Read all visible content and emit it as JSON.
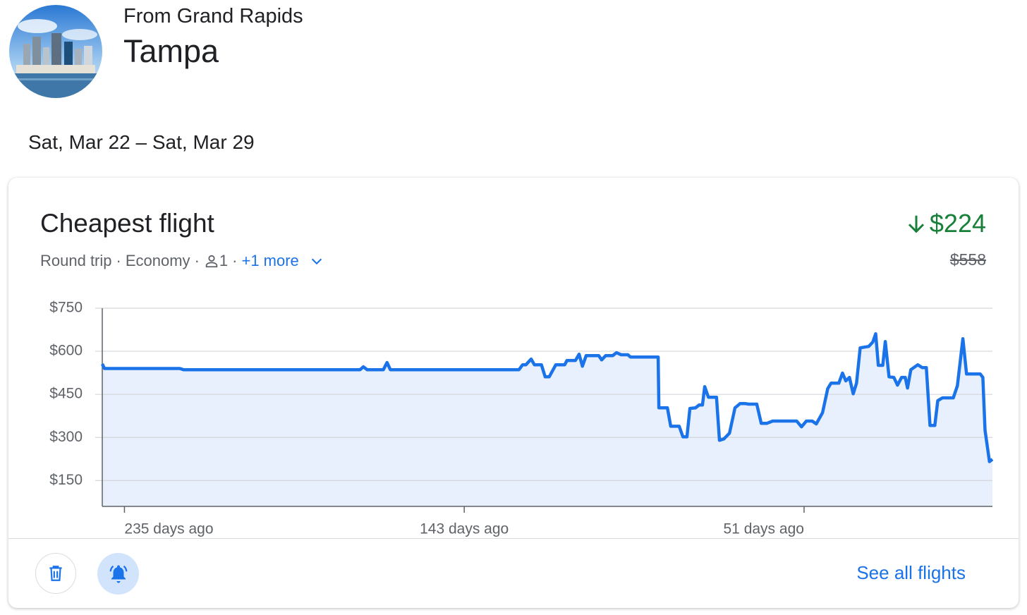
{
  "origin": "From Grand Rapids",
  "destination": "Tampa",
  "dates": "Sat, Mar 22 – Sat, Mar 29",
  "card": {
    "title": "Cheapest flight",
    "trip": "Round trip",
    "cabin": "Economy",
    "separator": "·",
    "passengers": "1",
    "more": "+1 more",
    "price": "$224",
    "old_price": "$558",
    "action": "See all flights"
  },
  "chart_data": {
    "type": "line",
    "color": "#1a73e8",
    "x": [
      241,
      240.4,
      220,
      219,
      171.2,
      170.3,
      169.3,
      164.9,
      163.9,
      163,
      128.2,
      127.2,
      126.3,
      124.9,
      124,
      122.1,
      121.1,
      120,
      118.2,
      115.8,
      115.2,
      112.9,
      111.9,
      111,
      110,
      106.6,
      105.8,
      104.7,
      102.8,
      101.8,
      100.5,
      98.7,
      98,
      90.5,
      90.3,
      88,
      87.1,
      84.8,
      83.8,
      82.7,
      81.9,
      80.4,
      79.4,
      78.5,
      77.9,
      76.9,
      74.7,
      73.9,
      72.7,
      71.2,
      69.7,
      68.3,
      67,
      66,
      63.8,
      62.6,
      61.1,
      59.5,
      53,
      51.7,
      50.4,
      48.8,
      47.7,
      46,
      44.6,
      43.7,
      41.6,
      40.6,
      39.7,
      38.7,
      37.7,
      36.8,
      35.8,
      33.5,
      32.4,
      31.6,
      30.9,
      29.7,
      29,
      28,
      26.7,
      25.7,
      24.6,
      23.6,
      23,
      22.1,
      20.2,
      19,
      17.9,
      16.9,
      15.6,
      14.8,
      13.5,
      10.6,
      9.5,
      8,
      7,
      3.3,
      2.6,
      2,
      0.8,
      0
    ],
    "values": [
      556,
      540,
      540,
      536,
      536,
      546,
      536,
      536,
      561,
      536,
      536,
      553,
      553,
      573,
      553,
      553,
      511,
      511,
      553,
      553,
      568,
      568,
      590,
      548,
      585,
      585,
      570,
      585,
      585,
      595,
      588,
      588,
      580,
      580,
      403,
      403,
      339,
      339,
      302,
      302,
      401,
      403,
      413,
      413,
      477,
      440,
      440,
      290,
      295,
      315,
      403,
      418,
      418,
      416,
      416,
      349,
      349,
      357,
      357,
      337,
      357,
      357,
      347,
      386,
      470,
      489,
      489,
      524,
      497,
      509,
      452,
      489,
      612,
      617,
      632,
      661,
      551,
      551,
      634,
      511,
      509,
      482,
      509,
      509,
      472,
      536,
      553,
      543,
      543,
      342,
      342,
      428,
      438,
      438,
      480,
      644,
      521,
      521,
      509,
      325,
      216,
      224
    ],
    "xlim": [
      241,
      0
    ],
    "xticks": [
      {
        "value": 235,
        "label": "235 days ago"
      },
      {
        "value": 143,
        "label": "143 days ago"
      },
      {
        "value": 51,
        "label": "51 days ago"
      }
    ],
    "ylim": [
      60,
      750
    ],
    "yticks": [
      {
        "value": 150,
        "label": "$150"
      },
      {
        "value": 300,
        "label": "$300"
      },
      {
        "value": 450,
        "label": "$450"
      },
      {
        "value": 600,
        "label": "$600"
      },
      {
        "value": 750,
        "label": "$750"
      }
    ],
    "grid": true
  }
}
